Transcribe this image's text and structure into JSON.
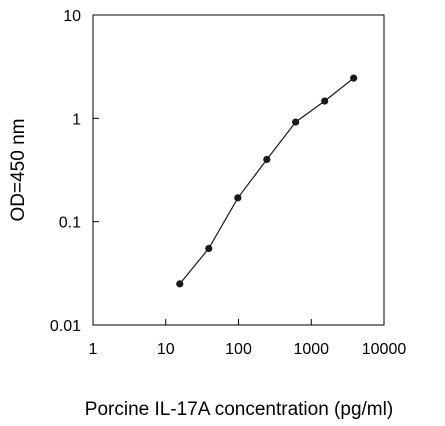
{
  "chart_data": {
    "type": "line",
    "title": "",
    "xlabel": "Porcine IL-17A concentration (pg/ml)",
    "ylabel": "OD=450 nm",
    "x_scale": "log",
    "y_scale": "log",
    "xlim": [
      1,
      10000
    ],
    "ylim": [
      0.01,
      10
    ],
    "x_ticks": [
      "1",
      "10",
      "100",
      "1000",
      "10000"
    ],
    "y_ticks": [
      "0.01",
      "0.1",
      "1",
      "10"
    ],
    "grid": false,
    "legend": "none",
    "colors": {
      "line": "#1a1a1a",
      "marker": "#1a1a1a"
    },
    "series": [
      {
        "x": [
          15.6,
          39,
          98,
          245,
          610,
          1530,
          3830
        ],
        "y": [
          0.025,
          0.055,
          0.17,
          0.4,
          0.92,
          1.47,
          2.45
        ]
      }
    ]
  }
}
